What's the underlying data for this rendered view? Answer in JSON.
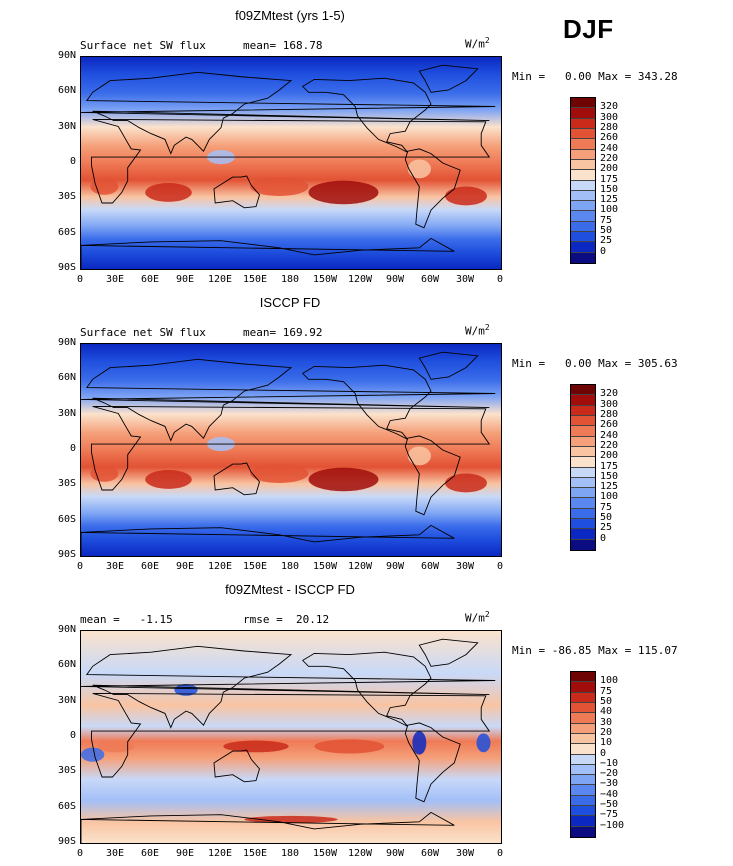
{
  "season": "DJF",
  "panels": [
    {
      "title": "f09ZMtest (yrs 1-5)",
      "sub_left": "Surface net SW flux",
      "sub_right": "mean= 168.78",
      "units": "W/m",
      "units_sup": "2",
      "minmax": "Min =   0.00 Max = 343.28",
      "kind": "sw",
      "colorbar_labels": [
        "320",
        "300",
        "280",
        "260",
        "240",
        "220",
        "200",
        "175",
        "150",
        "125",
        "100",
        "75",
        "50",
        "25",
        "0"
      ]
    },
    {
      "title": "ISCCP FD",
      "sub_left": "Surface net SW flux",
      "sub_right": "mean= 169.92",
      "units": "W/m",
      "units_sup": "2",
      "minmax": "Min =   0.00 Max = 305.63",
      "kind": "sw",
      "colorbar_labels": [
        "320",
        "300",
        "280",
        "260",
        "240",
        "220",
        "200",
        "175",
        "150",
        "125",
        "100",
        "75",
        "50",
        "25",
        "0"
      ]
    },
    {
      "title": "f09ZMtest - ISCCP FD",
      "sub_left": "mean =   -1.15",
      "sub_right": "rmse =  20.12",
      "units": "W/m",
      "units_sup": "2",
      "minmax": "Min = -86.85 Max = 115.07",
      "kind": "diff",
      "colorbar_labels": [
        "100",
        "75",
        "50",
        "40",
        "30",
        "20",
        "10",
        "0",
        "−10",
        "−20",
        "−30",
        "−40",
        "−50",
        "−75",
        "−100"
      ]
    }
  ],
  "lat_labels": [
    "90N",
    "60N",
    "30N",
    "0",
    "30S",
    "60S",
    "90S"
  ],
  "lon_labels": [
    "0",
    "30E",
    "60E",
    "90E",
    "120E",
    "150E",
    "180",
    "150W",
    "120W",
    "90W",
    "60W",
    "30W",
    "0"
  ],
  "colors": {
    "sw_scale": [
      "#0b0b82",
      "#0b28c2",
      "#1f4fde",
      "#3a6cea",
      "#5b88f0",
      "#7ea4f4",
      "#a3bff7",
      "#c8d9f8",
      "#fbe2cc",
      "#f9c4a2",
      "#f5a07a",
      "#ef7a56",
      "#e25234",
      "#c92a1a",
      "#a00d0a",
      "#6e0404"
    ],
    "diff_scale": [
      "#0b0b82",
      "#0b28c2",
      "#1f4fde",
      "#3a6cea",
      "#5b88f0",
      "#7ea4f4",
      "#a3bff7",
      "#c8d9f8",
      "#fbe2cc",
      "#f9c4a2",
      "#f5a07a",
      "#ef7a56",
      "#e25234",
      "#c92a1a",
      "#a00d0a",
      "#6e0404"
    ]
  }
}
